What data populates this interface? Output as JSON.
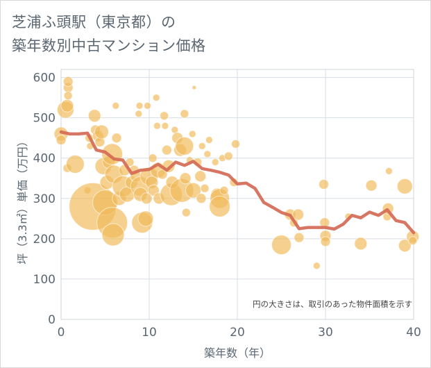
{
  "chart_data": {
    "type": "scatter",
    "title": "芝浦ふ頭駅（東京都）の\n築年数別中古マンション価格",
    "xlabel": "築年数（年）",
    "ylabel": "坪（3.3㎡）単価（万円）",
    "note": "円の大きさは、取引のあった物件面積を示す",
    "xlim": [
      0,
      40
    ],
    "ylim": [
      0,
      620
    ],
    "xticks": [
      0,
      10,
      20,
      30,
      40
    ],
    "yticks": [
      0,
      100,
      200,
      300,
      400,
      500,
      600
    ],
    "grid": true,
    "colors": {
      "bubble": "#f0b95a",
      "line": "#d46a55",
      "grid": "#d6dde4"
    },
    "bubbles": [
      {
        "x": 0,
        "y": 460,
        "s": 10
      },
      {
        "x": 0,
        "y": 445,
        "s": 7
      },
      {
        "x": 0.5,
        "y": 520,
        "s": 12
      },
      {
        "x": 0.7,
        "y": 530,
        "s": 9
      },
      {
        "x": 0.8,
        "y": 575,
        "s": 7
      },
      {
        "x": 0.8,
        "y": 555,
        "s": 6
      },
      {
        "x": 0.8,
        "y": 590,
        "s": 7
      },
      {
        "x": 0.7,
        "y": 375,
        "s": 6
      },
      {
        "x": 1.6,
        "y": 385,
        "s": 13
      },
      {
        "x": 3.0,
        "y": 320,
        "s": 5
      },
      {
        "x": 3.2,
        "y": 450,
        "s": 6
      },
      {
        "x": 3.3,
        "y": 430,
        "s": 5
      },
      {
        "x": 3.8,
        "y": 505,
        "s": 9
      },
      {
        "x": 3.9,
        "y": 470,
        "s": 7
      },
      {
        "x": 4.2,
        "y": 455,
        "s": 8
      },
      {
        "x": 4.4,
        "y": 440,
        "s": 7
      },
      {
        "x": 4.6,
        "y": 465,
        "s": 10
      },
      {
        "x": 3.6,
        "y": 280,
        "s": 34
      },
      {
        "x": 4.8,
        "y": 380,
        "s": 12
      },
      {
        "x": 5.0,
        "y": 290,
        "s": 18
      },
      {
        "x": 5.2,
        "y": 340,
        "s": 10
      },
      {
        "x": 5.4,
        "y": 390,
        "s": 9
      },
      {
        "x": 5.8,
        "y": 410,
        "s": 15
      },
      {
        "x": 5.8,
        "y": 240,
        "s": 22
      },
      {
        "x": 5.9,
        "y": 210,
        "s": 16
      },
      {
        "x": 6.0,
        "y": 360,
        "s": 13
      },
      {
        "x": 6.2,
        "y": 530,
        "s": 5
      },
      {
        "x": 6.3,
        "y": 450,
        "s": 7
      },
      {
        "x": 6.6,
        "y": 300,
        "s": 10
      },
      {
        "x": 7.0,
        "y": 330,
        "s": 15
      },
      {
        "x": 7.2,
        "y": 370,
        "s": 8
      },
      {
        "x": 7.5,
        "y": 310,
        "s": 11
      },
      {
        "x": 7.8,
        "y": 390,
        "s": 6
      },
      {
        "x": 8.0,
        "y": 340,
        "s": 9
      },
      {
        "x": 8.3,
        "y": 370,
        "s": 7
      },
      {
        "x": 8.5,
        "y": 355,
        "s": 8
      },
      {
        "x": 8.8,
        "y": 510,
        "s": 5
      },
      {
        "x": 8.9,
        "y": 530,
        "s": 5
      },
      {
        "x": 9.0,
        "y": 330,
        "s": 14
      },
      {
        "x": 9.0,
        "y": 310,
        "s": 10
      },
      {
        "x": 9.2,
        "y": 240,
        "s": 15
      },
      {
        "x": 9.6,
        "y": 250,
        "s": 11
      },
      {
        "x": 9.7,
        "y": 300,
        "s": 8
      },
      {
        "x": 9.8,
        "y": 530,
        "s": 5
      },
      {
        "x": 10.0,
        "y": 355,
        "s": 13
      },
      {
        "x": 10.3,
        "y": 340,
        "s": 9
      },
      {
        "x": 10.4,
        "y": 400,
        "s": 6
      },
      {
        "x": 10.5,
        "y": 320,
        "s": 8
      },
      {
        "x": 10.8,
        "y": 550,
        "s": 5
      },
      {
        "x": 10.9,
        "y": 480,
        "s": 5
      },
      {
        "x": 11.0,
        "y": 370,
        "s": 11
      },
      {
        "x": 11.1,
        "y": 300,
        "s": 8
      },
      {
        "x": 11.5,
        "y": 360,
        "s": 7
      },
      {
        "x": 11.7,
        "y": 505,
        "s": 6
      },
      {
        "x": 11.8,
        "y": 480,
        "s": 5
      },
      {
        "x": 12.0,
        "y": 420,
        "s": 7
      },
      {
        "x": 12.2,
        "y": 380,
        "s": 9
      },
      {
        "x": 12.5,
        "y": 310,
        "s": 16
      },
      {
        "x": 12.6,
        "y": 340,
        "s": 9
      },
      {
        "x": 12.9,
        "y": 470,
        "s": 5
      },
      {
        "x": 13.2,
        "y": 450,
        "s": 8
      },
      {
        "x": 13.5,
        "y": 420,
        "s": 9
      },
      {
        "x": 13.7,
        "y": 320,
        "s": 17
      },
      {
        "x": 14.0,
        "y": 430,
        "s": 13
      },
      {
        "x": 14.0,
        "y": 510,
        "s": 6
      },
      {
        "x": 14.1,
        "y": 350,
        "s": 8
      },
      {
        "x": 14.2,
        "y": 265,
        "s": 6
      },
      {
        "x": 14.6,
        "y": 395,
        "s": 5
      },
      {
        "x": 14.9,
        "y": 460,
        "s": 5
      },
      {
        "x": 15.1,
        "y": 575,
        "s": 3
      },
      {
        "x": 15.0,
        "y": 320,
        "s": 11
      },
      {
        "x": 15.5,
        "y": 390,
        "s": 6
      },
      {
        "x": 15.8,
        "y": 355,
        "s": 8
      },
      {
        "x": 15.9,
        "y": 300,
        "s": 7
      },
      {
        "x": 16.0,
        "y": 430,
        "s": 5
      },
      {
        "x": 16.3,
        "y": 325,
        "s": 6
      },
      {
        "x": 16.6,
        "y": 410,
        "s": 5
      },
      {
        "x": 16.8,
        "y": 445,
        "s": 5
      },
      {
        "x": 17.5,
        "y": 390,
        "s": 5
      },
      {
        "x": 17.7,
        "y": 310,
        "s": 9
      },
      {
        "x": 18.0,
        "y": 300,
        "s": 14
      },
      {
        "x": 18.0,
        "y": 280,
        "s": 15
      },
      {
        "x": 18.3,
        "y": 400,
        "s": 5
      },
      {
        "x": 18.5,
        "y": 320,
        "s": 6
      },
      {
        "x": 19.0,
        "y": 405,
        "s": 6
      },
      {
        "x": 19.6,
        "y": 340,
        "s": 6
      },
      {
        "x": 19.8,
        "y": 435,
        "s": 6
      },
      {
        "x": 25.0,
        "y": 185,
        "s": 14
      },
      {
        "x": 26.0,
        "y": 260,
        "s": 8
      },
      {
        "x": 26.4,
        "y": 240,
        "s": 6
      },
      {
        "x": 26.9,
        "y": 260,
        "s": 8
      },
      {
        "x": 27.0,
        "y": 203,
        "s": 7
      },
      {
        "x": 29.0,
        "y": 133,
        "s": 5
      },
      {
        "x": 29.8,
        "y": 335,
        "s": 7
      },
      {
        "x": 29.9,
        "y": 240,
        "s": 7
      },
      {
        "x": 30.0,
        "y": 207,
        "s": 8
      },
      {
        "x": 30.0,
        "y": 193,
        "s": 7
      },
      {
        "x": 32.6,
        "y": 255,
        "s": 5
      },
      {
        "x": 34.0,
        "y": 188,
        "s": 9
      },
      {
        "x": 35.2,
        "y": 332,
        "s": 8
      },
      {
        "x": 37.0,
        "y": 255,
        "s": 6
      },
      {
        "x": 37.1,
        "y": 275,
        "s": 8
      },
      {
        "x": 37.2,
        "y": 368,
        "s": 5
      },
      {
        "x": 39.0,
        "y": 330,
        "s": 11
      },
      {
        "x": 39.0,
        "y": 183,
        "s": 9
      },
      {
        "x": 39.9,
        "y": 205,
        "s": 9
      },
      {
        "x": 39.9,
        "y": 195,
        "s": 6
      }
    ],
    "series": [
      {
        "x": [
          0,
          1,
          2,
          3,
          4,
          5,
          6,
          7,
          8,
          9,
          10,
          11,
          12,
          13,
          14,
          15,
          16,
          17,
          18,
          19,
          20,
          21,
          22,
          23,
          24,
          25,
          26,
          27,
          28,
          29,
          30,
          31,
          32,
          33,
          34,
          35,
          36,
          37,
          38,
          39,
          40
        ],
        "y": [
          465,
          460,
          460,
          462,
          420,
          415,
          398,
          395,
          362,
          370,
          372,
          385,
          370,
          390,
          382,
          392,
          374,
          370,
          365,
          358,
          336,
          338,
          325,
          290,
          278,
          265,
          258,
          225,
          228,
          228,
          228,
          224,
          236,
          258,
          252,
          266,
          258,
          272,
          245,
          240,
          215
        ]
      }
    ]
  }
}
